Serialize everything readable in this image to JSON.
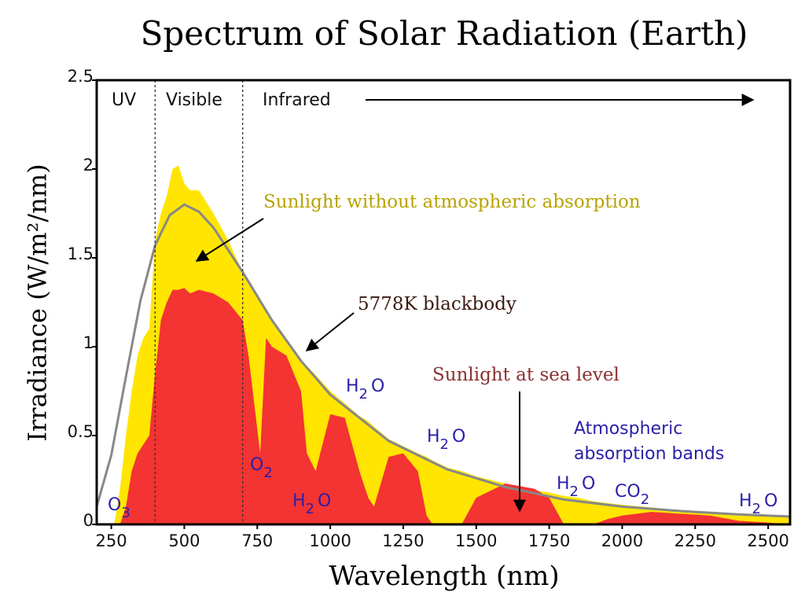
{
  "chart_data": {
    "type": "area",
    "title": "Spectrum of Solar Radiation (Earth)",
    "x_label": "Wavelength (nm)",
    "y_label": "Irradiance (W/m²/nm)",
    "xlim": [
      200,
      2575
    ],
    "ylim": [
      0,
      2.5
    ],
    "xticks": [
      250,
      500,
      750,
      1000,
      1250,
      1500,
      1750,
      2000,
      2250,
      2500
    ],
    "yticks": [
      0,
      0.5,
      1,
      1.5,
      2,
      2.5
    ],
    "x": [
      250,
      260,
      280,
      300,
      320,
      340,
      360,
      380,
      400,
      420,
      440,
      460,
      480,
      500,
      520,
      550,
      600,
      650,
      700,
      720,
      760,
      780,
      800,
      850,
      900,
      920,
      950,
      1000,
      1050,
      1100,
      1130,
      1150,
      1200,
      1250,
      1300,
      1330,
      1350,
      1400,
      1450,
      1500,
      1600,
      1700,
      1750,
      1800,
      1850,
      1900,
      1950,
      2000,
      2100,
      2200,
      2300,
      2400,
      2500,
      2575
    ],
    "series": [
      {
        "name": "Sunlight without atmospheric absorption",
        "color": "#ffe500",
        "values": [
          0,
          0,
          0.2,
          0.5,
          0.75,
          0.95,
          1.05,
          1.1,
          1.6,
          1.75,
          1.85,
          2.0,
          2.02,
          1.92,
          1.88,
          1.88,
          1.75,
          1.6,
          1.42,
          1.36,
          1.26,
          1.2,
          1.15,
          1.04,
          0.93,
          0.89,
          0.84,
          0.75,
          0.68,
          0.61,
          0.58,
          0.55,
          0.48,
          0.44,
          0.4,
          0.38,
          0.36,
          0.32,
          0.3,
          0.27,
          0.23,
          0.19,
          0.18,
          0.16,
          0.15,
          0.13,
          0.12,
          0.11,
          0.095,
          0.08,
          0.07,
          0.06,
          0.05,
          0.045
        ]
      },
      {
        "name": "Sunlight at sea level",
        "color": "#f43333",
        "values": [
          0,
          0,
          0,
          0.1,
          0.3,
          0.4,
          0.45,
          0.5,
          0.85,
          1.15,
          1.25,
          1.32,
          1.32,
          1.33,
          1.3,
          1.32,
          1.3,
          1.25,
          1.15,
          0.95,
          0.4,
          1.05,
          1.0,
          0.95,
          0.75,
          0.4,
          0.3,
          0.62,
          0.6,
          0.3,
          0.15,
          0.1,
          0.38,
          0.4,
          0.3,
          0.05,
          0,
          0,
          0,
          0.15,
          0.23,
          0.2,
          0.15,
          0,
          0,
          0,
          0.03,
          0.05,
          0.07,
          0.06,
          0.05,
          0.02,
          0.01,
          0
        ]
      },
      {
        "name": "5778K blackbody",
        "color": "#888888",
        "type": "line",
        "x": [
          200,
          250,
          300,
          350,
          400,
          450,
          500,
          550,
          600,
          700,
          800,
          900,
          1000,
          1200,
          1400,
          1600,
          1800,
          2000,
          2200,
          2400,
          2575
        ],
        "values": [
          0.1,
          0.39,
          0.83,
          1.26,
          1.57,
          1.74,
          1.8,
          1.76,
          1.67,
          1.42,
          1.15,
          0.92,
          0.73,
          0.47,
          0.31,
          0.21,
          0.14,
          0.1,
          0.075,
          0.056,
          0.044
        ]
      }
    ],
    "regions": {
      "labels": [
        "UV",
        "Visible",
        "Infrared"
      ],
      "boundaries": [
        400,
        700
      ]
    },
    "absorption_bands": {
      "title": [
        "Atmospheric",
        "absorption bands"
      ],
      "labels": [
        {
          "text": "O",
          "sub": "3"
        },
        {
          "text": "O",
          "sub": "2"
        },
        {
          "text": "H",
          "sub": "2",
          "rest": "O"
        },
        {
          "text": "H",
          "sub": "2",
          "rest": "O"
        },
        {
          "text": "H",
          "sub": "2",
          "rest": "O"
        },
        {
          "text": "H",
          "sub": "2",
          "rest": "O"
        },
        {
          "text": "CO",
          "sub": "2"
        },
        {
          "text": "H",
          "sub": "2",
          "rest": "O"
        }
      ]
    }
  }
}
